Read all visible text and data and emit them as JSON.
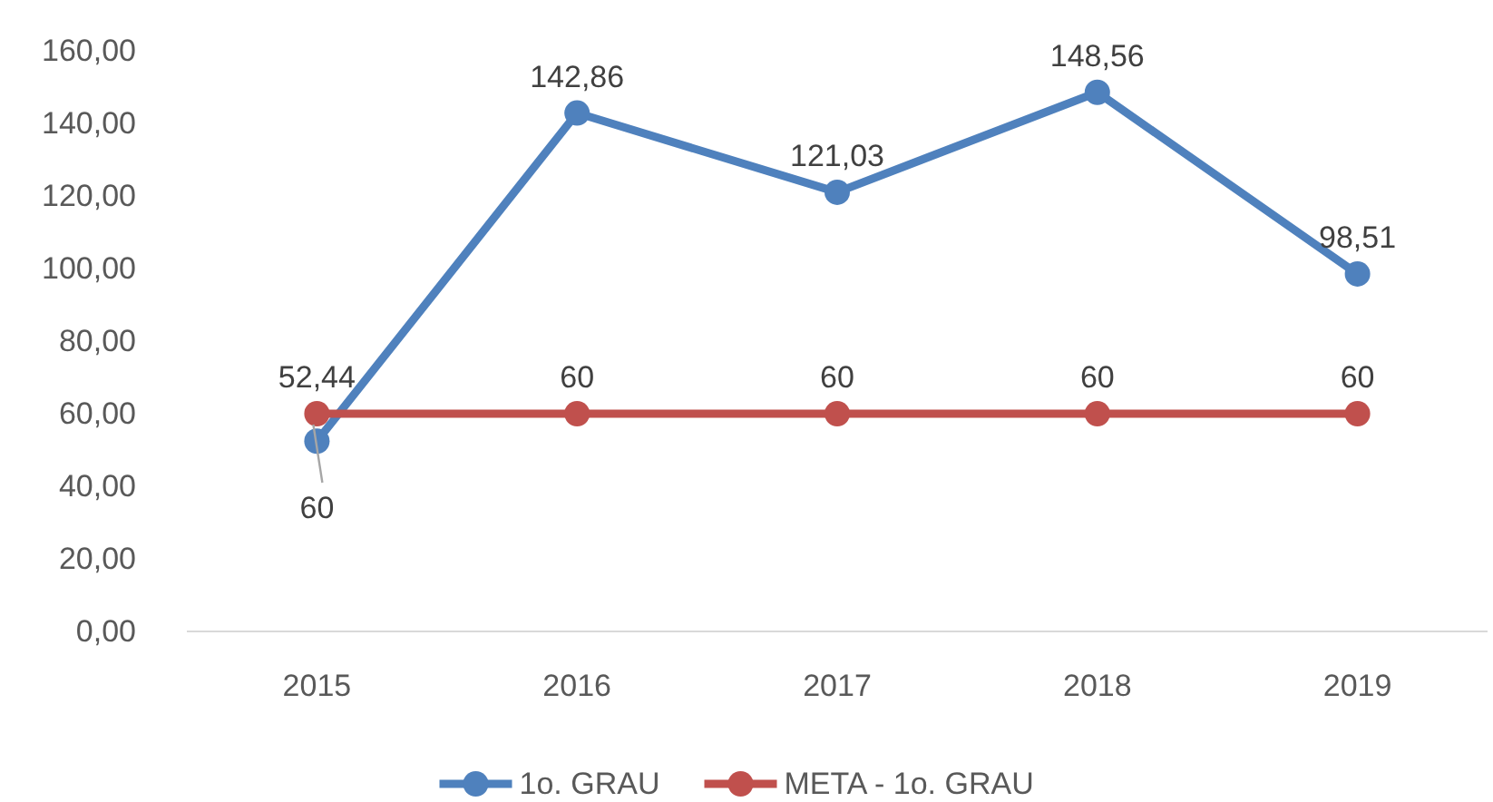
{
  "chart_data": {
    "type": "line",
    "categories": [
      "2015",
      "2016",
      "2017",
      "2018",
      "2019"
    ],
    "series": [
      {
        "name": "1o. GRAU",
        "color": "#4f81bd",
        "values": [
          52.44,
          142.86,
          121.03,
          148.56,
          98.51
        ],
        "value_labels": [
          "52,44",
          "142,86",
          "121,03",
          "148,56",
          "98,51"
        ]
      },
      {
        "name": "META - 1o. GRAU",
        "color": "#c0504d",
        "values": [
          60,
          60,
          60,
          60,
          60
        ],
        "value_labels": [
          "60",
          "60",
          "60",
          "60",
          "60"
        ]
      }
    ],
    "ylim": [
      0,
      160
    ],
    "yticks": [
      {
        "value": 0,
        "label": "0,00"
      },
      {
        "value": 20,
        "label": "20,00"
      },
      {
        "value": 40,
        "label": "40,00"
      },
      {
        "value": 60,
        "label": "60,00"
      },
      {
        "value": 80,
        "label": "80,00"
      },
      {
        "value": 100,
        "label": "100,00"
      },
      {
        "value": 120,
        "label": "120,00"
      },
      {
        "value": 140,
        "label": "140,00"
      },
      {
        "value": 160,
        "label": "160,00"
      }
    ],
    "grid": false,
    "legend": "bottom",
    "marker": "circle",
    "line_style": "solid"
  }
}
